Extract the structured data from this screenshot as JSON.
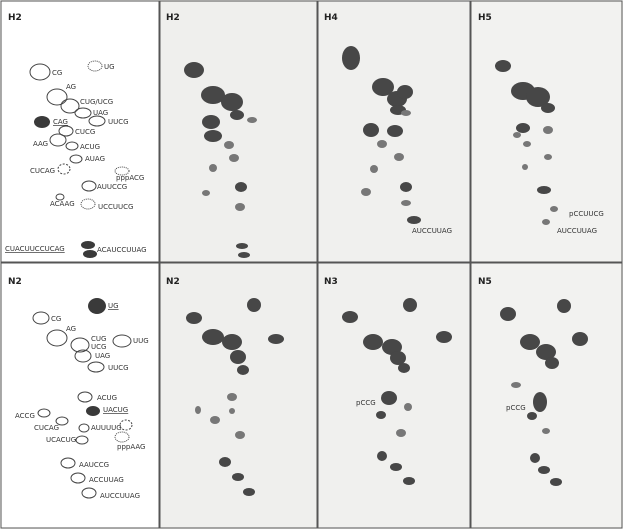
{
  "panels": [
    {
      "label": "H2",
      "spots": [
        "CG",
        "UG",
        "AG",
        "CUG/UCG",
        "UAG",
        "CAG",
        "UUCG",
        "CUCG",
        "AAG",
        "ACUG",
        "AUAG",
        "CUCAG",
        "pppACG",
        "AUUCCG",
        "ACAAG",
        "UCCUUCG",
        "CUACUUCCUCAG",
        "ACAUCCUUAG"
      ]
    },
    {
      "label": "H2"
    },
    {
      "label": "H4",
      "spots": [
        "AUCCUUAG"
      ]
    },
    {
      "label": "H5",
      "spots": [
        "pCCUUCG",
        "AUCCUUAG"
      ]
    },
    {
      "label": "N2",
      "spots": [
        "CG",
        "UG",
        "AG",
        "CUG",
        "UCG",
        "UUG",
        "UAG",
        "UUCG",
        "ACUG",
        "ACCG",
        "UACUG",
        "CUCAG",
        "AUUUUG",
        "UCACUG",
        "pppAAG",
        "AAUCCG",
        "ACCUUAG",
        "AUCCUUAG"
      ]
    },
    {
      "label": "N2"
    },
    {
      "label": "N3",
      "spots": [
        "pCCG"
      ]
    },
    {
      "label": "N5",
      "spots": [
        "pCCG"
      ]
    }
  ]
}
